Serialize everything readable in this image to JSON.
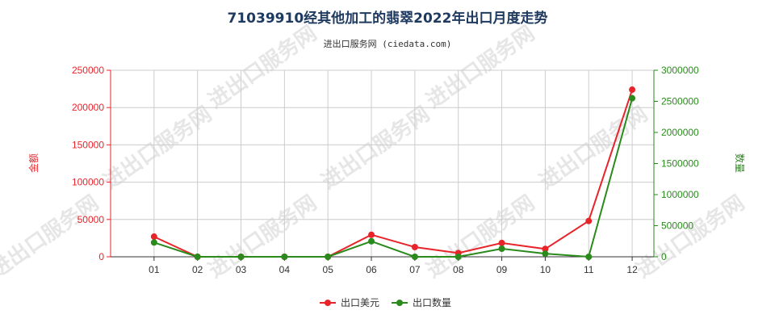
{
  "chart_data": {
    "type": "line",
    "title": "71039910经其他加工的翡翠2022年出口月度走势",
    "subtitle": "进出口服务网 (ciedata.com)",
    "categories": [
      "01",
      "02",
      "03",
      "04",
      "05",
      "06",
      "07",
      "08",
      "09",
      "10",
      "11",
      "12"
    ],
    "y_left": {
      "label": "金额",
      "ylim": [
        0,
        250000
      ],
      "ticks": [
        "0",
        "50000",
        "100000",
        "150000",
        "200000",
        "250000"
      ]
    },
    "y_right": {
      "label": "数量",
      "ylim": [
        0,
        3000000
      ],
      "ticks": [
        "0",
        "500000",
        "1000000",
        "1500000",
        "2000000",
        "2500000",
        "3000000"
      ]
    },
    "series": [
      {
        "name": "出口美元",
        "axis": "left",
        "color": "#e8242b",
        "values": [
          27000,
          0,
          0,
          0,
          0,
          29500,
          13000,
          5000,
          18500,
          10500,
          48000,
          224000
        ]
      },
      {
        "name": "出口数量",
        "axis": "right",
        "color": "#2a8a1c",
        "values": [
          230000,
          0,
          0,
          0,
          0,
          250000,
          0,
          0,
          130000,
          50000,
          0,
          2550000
        ]
      }
    ],
    "grid": true,
    "legend_position": "bottom-center",
    "watermark": "进出口服务网"
  }
}
